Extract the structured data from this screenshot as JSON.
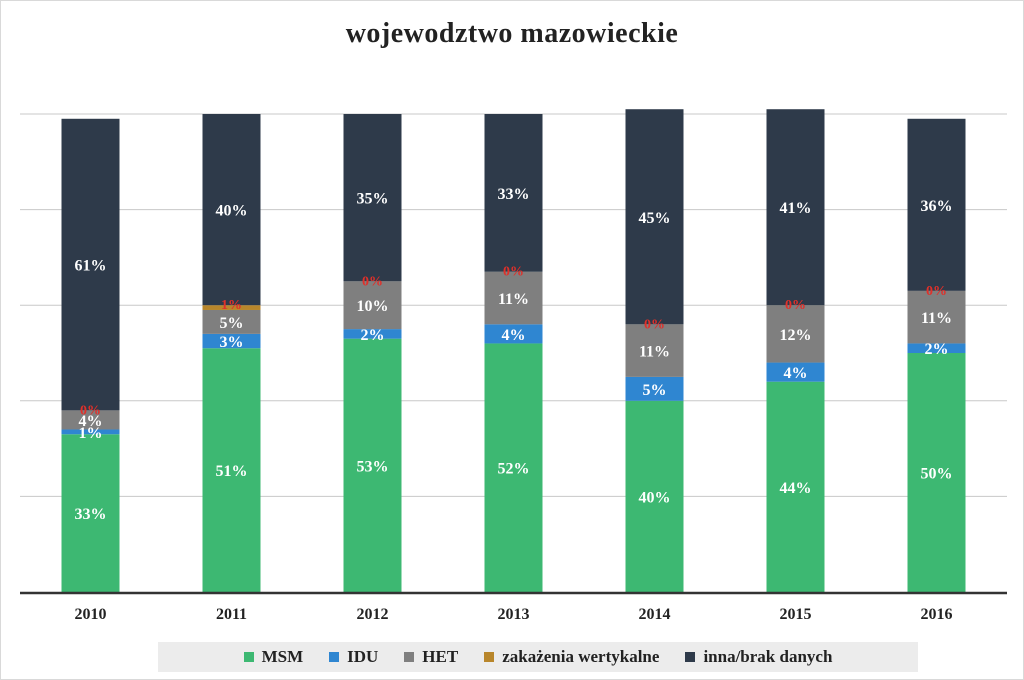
{
  "chart_data": {
    "type": "bar",
    "stacked": true,
    "title": "wojewodztwo  mazowieckie",
    "categories": [
      "2010",
      "2011",
      "2012",
      "2013",
      "2014",
      "2015",
      "2016"
    ],
    "ylim": [
      0,
      100
    ],
    "grid": true,
    "legend_position": "bottom",
    "series": [
      {
        "name": "MSM",
        "color": "#3db872",
        "values": [
          33,
          51,
          53,
          52,
          40,
          44,
          50
        ],
        "labels": [
          "33%",
          "51%",
          "53%",
          "52%",
          "40%",
          "44%",
          "50%"
        ]
      },
      {
        "name": "IDU",
        "color": "#2f86d1",
        "values": [
          1,
          3,
          2,
          4,
          5,
          4,
          2
        ],
        "labels": [
          "1%",
          "3%",
          "2%",
          "4%",
          "5%",
          "4%",
          "2%"
        ]
      },
      {
        "name": "HET",
        "color": "#7f7f7f",
        "values": [
          4,
          5,
          10,
          11,
          11,
          12,
          11
        ],
        "labels": [
          "4%",
          "5%",
          "10%",
          "11%",
          "11%",
          "12%",
          "11%"
        ]
      },
      {
        "name": "zakażenia wertykalne",
        "color": "#b8862b",
        "values": [
          0,
          1,
          0,
          0,
          0,
          0,
          0
        ],
        "labels": [
          "0%",
          "1%",
          "0%",
          "0%",
          "0%",
          "0%",
          "0%"
        ]
      },
      {
        "name": "inna/brak danych",
        "color": "#2e3a4a",
        "values": [
          61,
          40,
          35,
          33,
          45,
          41,
          36
        ],
        "labels": [
          "61%",
          "40%",
          "35%",
          "33%",
          "45%",
          "41%",
          "36%"
        ]
      }
    ]
  }
}
